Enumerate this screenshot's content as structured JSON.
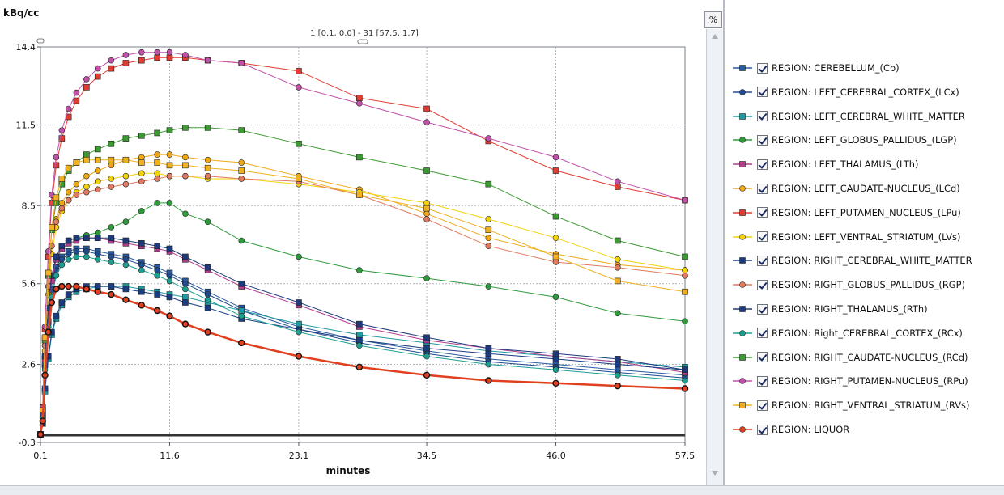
{
  "toolbar": {
    "percent_label": "%"
  },
  "chart_data": {
    "type": "line",
    "ylabel": "kBq/cc",
    "xlabel": "minutes",
    "header_readout": "1 [0.1, 0.0] - 31 [57.5, 1.7]",
    "xlim": [
      0.1,
      57.5
    ],
    "ylim": [
      -0.3,
      14.4
    ],
    "xticks": [
      "0.1",
      "11.6",
      "23.1",
      "34.5",
      "46.0",
      "57.5"
    ],
    "yticks": [
      "14.4",
      "11.5",
      "8.5",
      "5.6",
      "2.6",
      "-0.3"
    ],
    "x": [
      0.1,
      0.3,
      0.5,
      0.8,
      1.1,
      1.5,
      2.0,
      2.6,
      3.3,
      4.2,
      5.2,
      6.4,
      7.7,
      9.1,
      10.5,
      11.6,
      13.0,
      15.0,
      18.0,
      23.1,
      28.5,
      34.5,
      40.0,
      46.0,
      51.5,
      57.5
    ],
    "series": [
      {
        "name": "REGION: CEREBELLUM_(Cb)",
        "color": "#2a5aa0",
        "marker": "square",
        "values": [
          0.0,
          0.6,
          2.6,
          4.2,
          5.4,
          6.2,
          6.6,
          6.8,
          6.9,
          6.9,
          6.8,
          6.7,
          6.6,
          6.4,
          6.2,
          6.0,
          5.7,
          5.3,
          4.7,
          4.0,
          3.5,
          3.1,
          2.8,
          2.6,
          2.4,
          2.2
        ]
      },
      {
        "name": "REGION: LEFT_CEREBRAL_CORTEX_(LCx)",
        "color": "#1f4c8f",
        "marker": "circle",
        "values": [
          0.0,
          0.6,
          2.5,
          4.1,
          5.3,
          6.1,
          6.5,
          6.7,
          6.8,
          6.8,
          6.7,
          6.6,
          6.5,
          6.3,
          6.1,
          5.9,
          5.6,
          5.2,
          4.6,
          3.9,
          3.4,
          3.0,
          2.7,
          2.5,
          2.3,
          2.1
        ]
      },
      {
        "name": "REGION: LEFT_CEREBRAL_WHITE_MATTER",
        "color": "#1e9aa0",
        "marker": "square",
        "values": [
          0.0,
          0.4,
          1.6,
          2.8,
          3.7,
          4.3,
          4.8,
          5.1,
          5.3,
          5.4,
          5.5,
          5.5,
          5.5,
          5.4,
          5.3,
          5.2,
          5.1,
          4.9,
          4.6,
          4.1,
          3.7,
          3.4,
          3.1,
          2.9,
          2.7,
          2.5
        ]
      },
      {
        "name": "REGION: LEFT_GLOBUS_PALLIDUS_(LGP)",
        "color": "#2e9a3c",
        "marker": "circle",
        "values": [
          0.0,
          0.7,
          2.9,
          4.7,
          5.9,
          6.6,
          7.0,
          7.2,
          7.3,
          7.4,
          7.5,
          7.7,
          7.9,
          8.3,
          8.6,
          8.6,
          8.2,
          7.9,
          7.2,
          6.6,
          6.1,
          5.8,
          5.5,
          5.1,
          4.5,
          4.2
        ]
      },
      {
        "name": "REGION: LEFT_THALAMUS_(LTh)",
        "color": "#b23c8c",
        "marker": "square",
        "values": [
          0.0,
          0.7,
          2.8,
          4.5,
          5.7,
          6.5,
          6.9,
          7.1,
          7.2,
          7.3,
          7.3,
          7.2,
          7.1,
          7.0,
          6.9,
          6.8,
          6.5,
          6.1,
          5.5,
          4.8,
          4.0,
          3.5,
          3.2,
          2.9,
          2.7,
          2.3
        ]
      },
      {
        "name": "REGION: LEFT_CAUDATE-NUCLEUS_(LCd)",
        "color": "#f0a818",
        "marker": "circle",
        "values": [
          0.0,
          0.8,
          3.3,
          5.5,
          7.0,
          8.0,
          8.6,
          9.0,
          9.3,
          9.6,
          9.8,
          10.0,
          10.2,
          10.3,
          10.4,
          10.4,
          10.3,
          10.2,
          10.1,
          9.6,
          9.1,
          8.2,
          7.3,
          6.7,
          6.3,
          6.1
        ]
      },
      {
        "name": "REGION: LEFT_PUTAMEN_NUCLEUS_(LPu)",
        "color": "#e03c32",
        "marker": "square",
        "values": [
          0.0,
          1.0,
          3.9,
          6.6,
          8.6,
          10.0,
          11.0,
          11.8,
          12.4,
          12.9,
          13.3,
          13.6,
          13.8,
          13.9,
          14.0,
          14.0,
          14.0,
          13.9,
          13.8,
          13.5,
          12.5,
          12.1,
          10.9,
          9.8,
          9.2,
          8.7
        ]
      },
      {
        "name": "REGION: LEFT_VENTRAL_STRIATUM_(LVs)",
        "color": "#f2d20a",
        "marker": "circle",
        "values": [
          0.0,
          0.8,
          3.1,
          5.2,
          6.7,
          7.7,
          8.3,
          8.7,
          9.0,
          9.2,
          9.4,
          9.5,
          9.6,
          9.7,
          9.7,
          9.6,
          9.6,
          9.5,
          9.5,
          9.3,
          9.0,
          8.6,
          8.0,
          7.3,
          6.5,
          6.1
        ]
      },
      {
        "name": "REGION: RIGHT_CEREBRAL_WHITE_MATTER",
        "color": "#1a3c82",
        "marker": "square",
        "values": [
          0.0,
          0.4,
          1.7,
          2.9,
          3.8,
          4.4,
          4.9,
          5.2,
          5.4,
          5.5,
          5.5,
          5.5,
          5.4,
          5.3,
          5.2,
          5.1,
          4.9,
          4.7,
          4.3,
          3.9,
          3.5,
          3.2,
          3.0,
          2.8,
          2.6,
          2.4
        ]
      },
      {
        "name": "REGION: RIGHT_GLOBUS_PALLIDUS_(RGP)",
        "color": "#e07a60",
        "marker": "circle",
        "values": [
          0.0,
          0.8,
          3.3,
          5.5,
          7.0,
          7.9,
          8.4,
          8.7,
          8.9,
          9.0,
          9.1,
          9.2,
          9.3,
          9.4,
          9.5,
          9.6,
          9.6,
          9.6,
          9.5,
          9.4,
          8.9,
          8.0,
          7.0,
          6.4,
          6.2,
          5.9
        ]
      },
      {
        "name": "REGION: RIGHT_THALAMUS_(RTh)",
        "color": "#1e3a7a",
        "marker": "square",
        "values": [
          0.0,
          0.7,
          2.9,
          4.7,
          5.9,
          6.6,
          7.0,
          7.2,
          7.3,
          7.3,
          7.3,
          7.3,
          7.2,
          7.1,
          7.0,
          6.9,
          6.6,
          6.2,
          5.6,
          4.9,
          4.1,
          3.6,
          3.2,
          3.0,
          2.8,
          2.4
        ]
      },
      {
        "name": "REGION: Right_CEREBRAL_CORTEX_(RCx)",
        "color": "#1ea090",
        "marker": "circle",
        "values": [
          0.0,
          0.6,
          2.4,
          4.0,
          5.1,
          5.9,
          6.3,
          6.5,
          6.6,
          6.6,
          6.5,
          6.4,
          6.3,
          6.1,
          5.9,
          5.7,
          5.4,
          5.0,
          4.4,
          3.8,
          3.3,
          2.9,
          2.6,
          2.4,
          2.2,
          2.0
        ]
      },
      {
        "name": "REGION: RIGHT_CAUDATE-NUCLEUS_(RCd)",
        "color": "#3c9a32",
        "marker": "square",
        "values": [
          0.0,
          0.9,
          3.5,
          5.9,
          7.6,
          8.6,
          9.3,
          9.8,
          10.1,
          10.4,
          10.6,
          10.8,
          11.0,
          11.1,
          11.2,
          11.3,
          11.4,
          11.4,
          11.3,
          10.8,
          10.3,
          9.8,
          9.3,
          8.1,
          7.2,
          6.6
        ]
      },
      {
        "name": "REGION: RIGHT_PUTAMEN-NUCLEUS_(RPu)",
        "color": "#c050a8",
        "marker": "circle",
        "values": [
          0.0,
          1.0,
          4.0,
          6.8,
          8.9,
          10.3,
          11.3,
          12.1,
          12.7,
          13.2,
          13.6,
          13.9,
          14.1,
          14.2,
          14.2,
          14.2,
          14.1,
          13.9,
          13.8,
          12.9,
          12.3,
          11.6,
          11.0,
          10.3,
          9.4,
          8.7
        ]
      },
      {
        "name": "REGION: RIGHT_VENTRAL_STRIATUM_(RVs)",
        "color": "#f0b020",
        "marker": "square",
        "values": [
          0.0,
          0.9,
          3.6,
          6.0,
          7.7,
          8.8,
          9.5,
          9.9,
          10.1,
          10.2,
          10.2,
          10.2,
          10.2,
          10.1,
          10.1,
          10.0,
          10.0,
          9.9,
          9.8,
          9.5,
          8.9,
          8.4,
          7.6,
          6.6,
          5.7,
          5.3
        ]
      },
      {
        "name": "REGION: LIQUOR",
        "color": "#e04020",
        "marker": "circle",
        "values": [
          0.0,
          0.5,
          2.2,
          3.8,
          4.9,
          5.4,
          5.5,
          5.5,
          5.5,
          5.4,
          5.3,
          5.2,
          5.0,
          4.8,
          4.6,
          4.4,
          4.1,
          3.8,
          3.4,
          2.9,
          2.5,
          2.2,
          2.0,
          1.9,
          1.8,
          1.7
        ]
      }
    ]
  }
}
